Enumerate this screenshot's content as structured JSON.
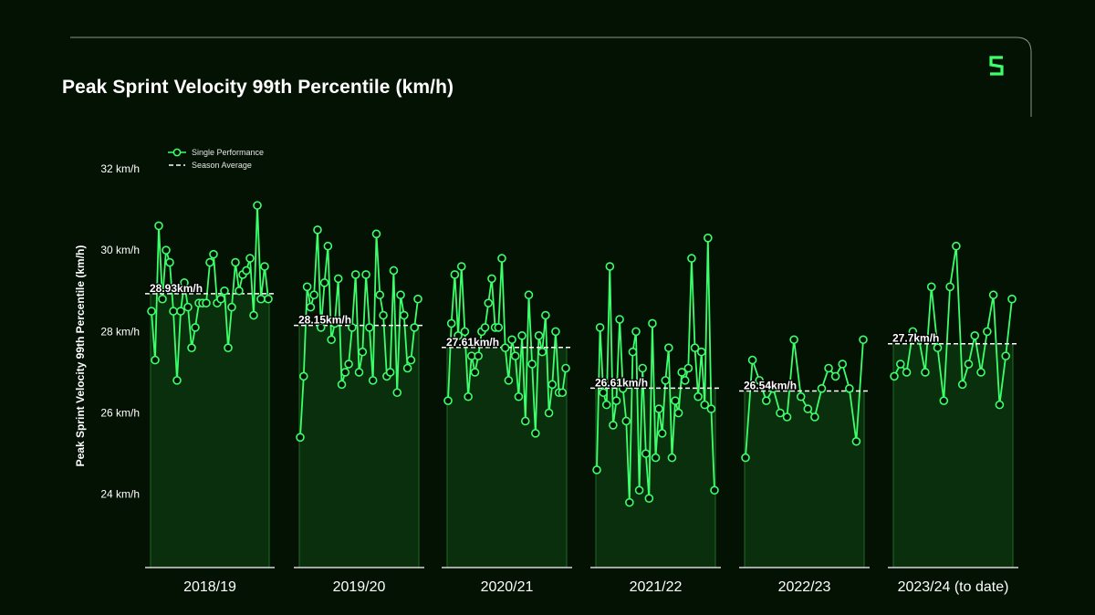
{
  "colors": {
    "background": "#031203",
    "accent": "#3cff6b",
    "frame": "#8a948a",
    "fill": "#0d3a10"
  },
  "logo": {
    "icon": "s-logo-icon"
  },
  "chart_data": {
    "type": "line",
    "title": "Peak Sprint Velocity 99th Percentile (km/h)",
    "ylabel": "Peak Sprint Velocity 99th Percentile (km/h)",
    "ylim": [
      22.2,
      32
    ],
    "yticks": [
      {
        "value": 24,
        "label": "24 km/h"
      },
      {
        "value": 26,
        "label": "26 km/h"
      },
      {
        "value": 28,
        "label": "28 km/h"
      },
      {
        "value": 30,
        "label": "30 km/h"
      },
      {
        "value": 32,
        "label": "32 km/h"
      }
    ],
    "legend": {
      "position": "top-left",
      "entries": [
        "Single Performance",
        "Season Average"
      ]
    },
    "seasons": [
      {
        "label": "2018/19",
        "average": 28.93,
        "average_label": "28.93km/h",
        "values": [
          28.5,
          27.3,
          30.6,
          28.8,
          30.0,
          29.7,
          28.5,
          26.8,
          28.5,
          29.2,
          28.6,
          27.6,
          28.1,
          28.7,
          28.7,
          28.7,
          29.7,
          29.9,
          28.7,
          28.8,
          29.0,
          27.6,
          28.6,
          29.7,
          29.0,
          29.4,
          29.5,
          29.8,
          28.4,
          31.1,
          28.8,
          29.6,
          28.8
        ]
      },
      {
        "label": "2019/20",
        "average": 28.15,
        "average_label": "28.15km/h",
        "values": [
          25.4,
          26.9,
          29.1,
          28.6,
          28.9,
          30.5,
          28.1,
          29.2,
          30.1,
          27.8,
          28.2,
          29.3,
          26.7,
          27.0,
          27.2,
          28.1,
          29.4,
          27.0,
          27.5,
          29.4,
          28.1,
          26.8,
          30.4,
          28.9,
          28.4,
          26.9,
          27.0,
          29.5,
          26.5,
          28.9,
          28.4,
          27.1,
          27.3,
          28.1,
          28.8
        ]
      },
      {
        "label": "2020/21",
        "average": 27.61,
        "average_label": "27.61km/h",
        "values": [
          26.3,
          28.2,
          29.4,
          27.9,
          29.6,
          28.0,
          26.4,
          27.4,
          27.0,
          27.4,
          28.0,
          28.1,
          28.7,
          29.3,
          28.1,
          28.1,
          29.8,
          27.6,
          26.8,
          27.8,
          27.4,
          26.4,
          27.9,
          25.8,
          28.9,
          27.2,
          25.5,
          27.9,
          27.5,
          28.4,
          26.0,
          26.7,
          28.0,
          26.5,
          26.5,
          27.1
        ]
      },
      {
        "label": "2021/22",
        "average": 26.61,
        "average_label": "26.61km/h",
        "values": [
          24.6,
          28.1,
          26.5,
          26.2,
          29.6,
          25.7,
          26.3,
          28.3,
          26.6,
          25.8,
          23.8,
          27.5,
          28.0,
          24.1,
          27.1,
          25.0,
          23.9,
          28.2,
          24.9,
          26.1,
          25.5,
          26.8,
          27.6,
          24.9,
          26.3,
          26.0,
          27.0,
          26.8,
          27.1,
          29.8,
          27.6,
          26.4,
          27.5,
          26.2,
          30.3,
          26.1,
          24.1
        ]
      },
      {
        "label": "2022/23",
        "average": 26.54,
        "average_label": "26.54km/h",
        "values": [
          24.9,
          27.3,
          26.8,
          26.3,
          26.6,
          26.0,
          25.9,
          27.8,
          26.4,
          26.1,
          25.9,
          26.6,
          27.1,
          26.9,
          27.2,
          26.6,
          25.3,
          27.8
        ]
      },
      {
        "label": "2023/24 (to date)",
        "average": 27.7,
        "average_label": "27.7km/h",
        "values": [
          26.9,
          27.2,
          27.0,
          28.0,
          27.8,
          27.0,
          29.1,
          27.6,
          26.3,
          29.1,
          30.1,
          26.7,
          27.2,
          27.9,
          27.0,
          28.0,
          28.9,
          26.2,
          27.4,
          28.8
        ]
      }
    ]
  }
}
